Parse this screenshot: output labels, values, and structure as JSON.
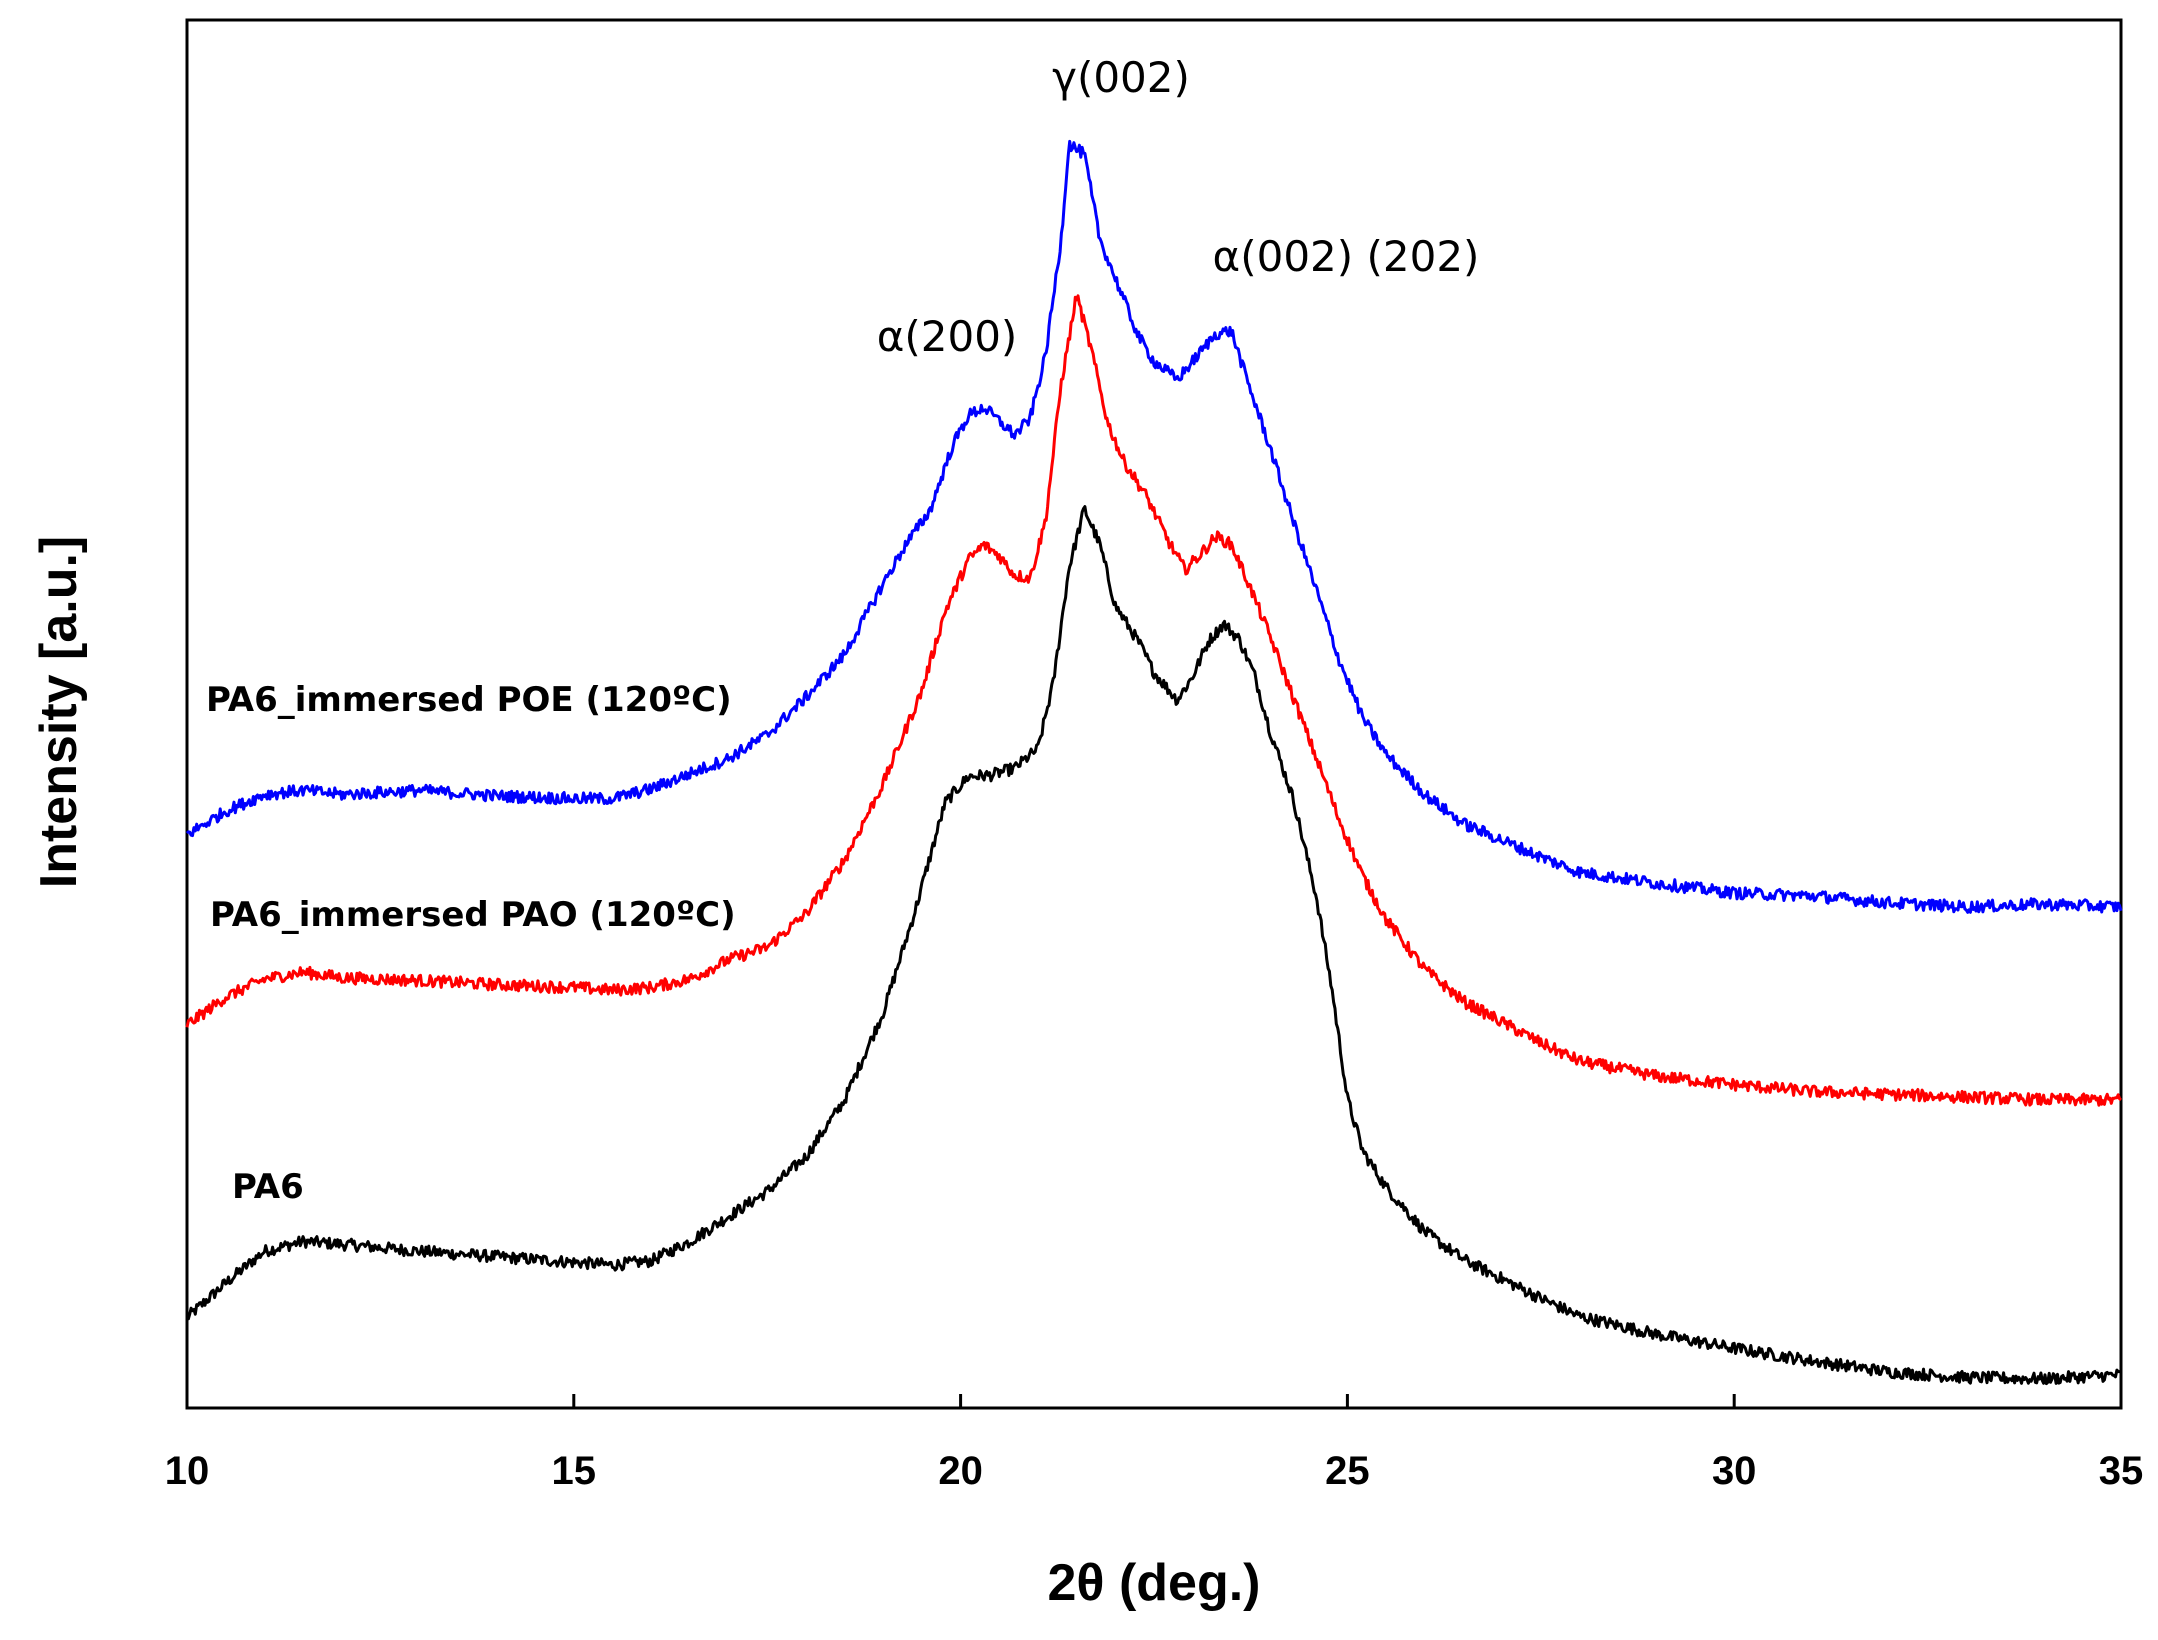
{
  "chart_data": {
    "type": "line",
    "title": "",
    "xlabel": "2θ (deg.)",
    "ylabel": "Intensity [a.u.]",
    "xlim": [
      10,
      35
    ],
    "ylim": [
      0,
      100
    ],
    "xticks": [
      10,
      15,
      20,
      25,
      30,
      35
    ],
    "yticks_shown": false,
    "grid": false,
    "legend": "none",
    "series": [
      {
        "name": "PA6",
        "color": "#000000",
        "points": [
          [
            10,
            6.5
          ],
          [
            10.5,
            9
          ],
          [
            11,
            11.3
          ],
          [
            11.5,
            12
          ],
          [
            12,
            11.8
          ],
          [
            13,
            11.3
          ],
          [
            14,
            10.9
          ],
          [
            15,
            10.5
          ],
          [
            15.5,
            10.3
          ],
          [
            16,
            10.6
          ],
          [
            16.5,
            12
          ],
          [
            17,
            13.8
          ],
          [
            17.5,
            15.6
          ],
          [
            18,
            18.1
          ],
          [
            18.5,
            22.2
          ],
          [
            19,
            28.5
          ],
          [
            19.4,
            35.6
          ],
          [
            19.8,
            43.6
          ],
          [
            20.1,
            45.5
          ],
          [
            20.4,
            45.6
          ],
          [
            20.7,
            46.1
          ],
          [
            21,
            47.5
          ],
          [
            21.2,
            52.3
          ],
          [
            21.4,
            60.5
          ],
          [
            21.6,
            64.8
          ],
          [
            21.8,
            62.2
          ],
          [
            22,
            57.8
          ],
          [
            22.3,
            55.2
          ],
          [
            22.5,
            53
          ],
          [
            22.8,
            51
          ],
          [
            23,
            52.7
          ],
          [
            23.2,
            55.2
          ],
          [
            23.4,
            56.5
          ],
          [
            23.6,
            55.4
          ],
          [
            23.8,
            52.8
          ],
          [
            24,
            48.8
          ],
          [
            24.3,
            43.9
          ],
          [
            24.6,
            36.8
          ],
          [
            24.8,
            30.2
          ],
          [
            25,
            22.3
          ],
          [
            25.2,
            18.5
          ],
          [
            25.5,
            15.9
          ],
          [
            26,
            12.7
          ],
          [
            26.5,
            10.7
          ],
          [
            27,
            9.3
          ],
          [
            27.5,
            7.9
          ],
          [
            28,
            6.6
          ],
          [
            29,
            5.3
          ],
          [
            30,
            4.3
          ],
          [
            31,
            3.4
          ],
          [
            32,
            2.6
          ],
          [
            33,
            2.2
          ],
          [
            34,
            2.1
          ],
          [
            35,
            2.4
          ]
        ]
      },
      {
        "name": "PA6_immersed PAO (120ºC)",
        "color": "#ff0000",
        "points": [
          [
            10,
            27.6
          ],
          [
            10.5,
            29.6
          ],
          [
            11,
            30.9
          ],
          [
            11.5,
            31.4
          ],
          [
            12,
            31
          ],
          [
            13,
            30.8
          ],
          [
            14,
            30.5
          ],
          [
            15,
            30.3
          ],
          [
            15.5,
            30.1
          ],
          [
            16,
            30.3
          ],
          [
            16.5,
            30.9
          ],
          [
            17,
            32.3
          ],
          [
            17.5,
            33.2
          ],
          [
            18,
            35.6
          ],
          [
            18.5,
            39.5
          ],
          [
            19,
            45
          ],
          [
            19.5,
            51.7
          ],
          [
            19.8,
            57.4
          ],
          [
            20.1,
            61.1
          ],
          [
            20.3,
            62.2
          ],
          [
            20.5,
            61.4
          ],
          [
            20.7,
            60
          ],
          [
            20.9,
            59.8
          ],
          [
            21.1,
            64
          ],
          [
            21.3,
            73.8
          ],
          [
            21.5,
            80.2
          ],
          [
            21.7,
            76
          ],
          [
            21.9,
            71
          ],
          [
            22.1,
            68.3
          ],
          [
            22.4,
            65.7
          ],
          [
            22.7,
            62.3
          ],
          [
            22.9,
            60.4
          ],
          [
            23.1,
            61.5
          ],
          [
            23.3,
            62.8
          ],
          [
            23.5,
            62.2
          ],
          [
            23.7,
            59.7
          ],
          [
            24,
            55.6
          ],
          [
            24.3,
            51.2
          ],
          [
            24.6,
            46.8
          ],
          [
            24.9,
            42.3
          ],
          [
            25.2,
            38.3
          ],
          [
            25.5,
            35.2
          ],
          [
            26,
            31.6
          ],
          [
            26.5,
            29.3
          ],
          [
            27,
            27.8
          ],
          [
            27.5,
            26.3
          ],
          [
            28,
            25
          ],
          [
            29,
            23.9
          ],
          [
            30,
            23.3
          ],
          [
            31,
            22.8
          ],
          [
            32,
            22.6
          ],
          [
            33,
            22.4
          ],
          [
            34,
            22.2
          ],
          [
            35,
            22.2
          ]
        ]
      },
      {
        "name": "PA6_immersed POE (120ºC)",
        "color": "#0000ff",
        "points": [
          [
            10,
            41.3
          ],
          [
            10.5,
            43
          ],
          [
            11,
            44.2
          ],
          [
            11.5,
            44.5
          ],
          [
            12,
            44.2
          ],
          [
            13,
            44.5
          ],
          [
            14,
            44.1
          ],
          [
            15,
            43.9
          ],
          [
            15.5,
            43.9
          ],
          [
            16,
            44.6
          ],
          [
            16.5,
            45.7
          ],
          [
            17,
            46.8
          ],
          [
            17.5,
            48.5
          ],
          [
            18,
            51.2
          ],
          [
            18.5,
            54.3
          ],
          [
            19,
            59.4
          ],
          [
            19.3,
            62.3
          ],
          [
            19.6,
            64.6
          ],
          [
            19.9,
            69.4
          ],
          [
            20.1,
            71.5
          ],
          [
            20.3,
            72.1
          ],
          [
            20.5,
            71.1
          ],
          [
            20.7,
            70.1
          ],
          [
            20.9,
            71.3
          ],
          [
            21.1,
            75.9
          ],
          [
            21.3,
            84.2
          ],
          [
            21.4,
            91.1
          ],
          [
            21.6,
            90.3
          ],
          [
            21.8,
            84.2
          ],
          [
            22,
            81.4
          ],
          [
            22.3,
            77.2
          ],
          [
            22.5,
            75.4
          ],
          [
            22.8,
            74.1
          ],
          [
            23,
            75.4
          ],
          [
            23.3,
            77.4
          ],
          [
            23.5,
            77.6
          ],
          [
            23.7,
            74.1
          ],
          [
            24,
            69.2
          ],
          [
            24.3,
            63.9
          ],
          [
            24.6,
            58.9
          ],
          [
            24.9,
            53.8
          ],
          [
            25.2,
            49.7
          ],
          [
            25.5,
            47.1
          ],
          [
            26,
            44.2
          ],
          [
            26.5,
            42.1
          ],
          [
            27,
            40.9
          ],
          [
            27.5,
            39.7
          ],
          [
            28,
            38.6
          ],
          [
            29,
            37.8
          ],
          [
            30,
            37.1
          ],
          [
            31,
            36.9
          ],
          [
            32,
            36.4
          ],
          [
            33,
            36.1
          ],
          [
            34,
            36.3
          ],
          [
            35,
            36.1
          ]
        ]
      }
    ],
    "annotations": [
      "γ(002)",
      "α(200)",
      "α(002) (202)"
    ]
  }
}
